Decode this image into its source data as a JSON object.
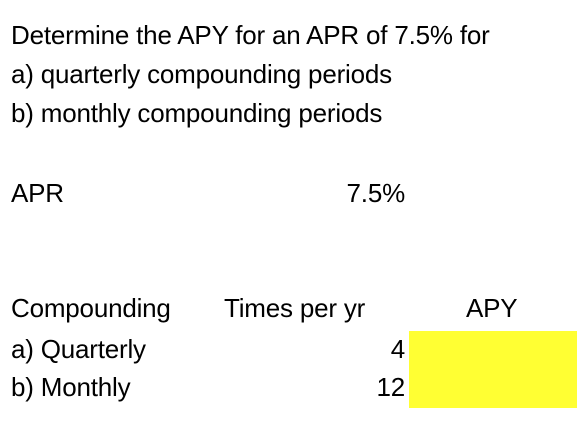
{
  "problem": {
    "line1": "Determine the APY for an APR of 7.5% for",
    "line2": "a) quarterly compounding periods",
    "line3": "b) monthly compounding periods"
  },
  "apr": {
    "label": "APR",
    "value": "7.5%"
  },
  "table": {
    "headers": {
      "compounding": "Compounding",
      "times_per_yr": "Times per yr",
      "apy": "APY"
    },
    "rows": [
      {
        "label": "a) Quarterly",
        "times": "4",
        "apy": ""
      },
      {
        "label": "b) Monthly",
        "times": "12",
        "apy": ""
      }
    ]
  },
  "colors": {
    "highlight": "#ffff33",
    "text": "#000000",
    "background": "#ffffff"
  }
}
